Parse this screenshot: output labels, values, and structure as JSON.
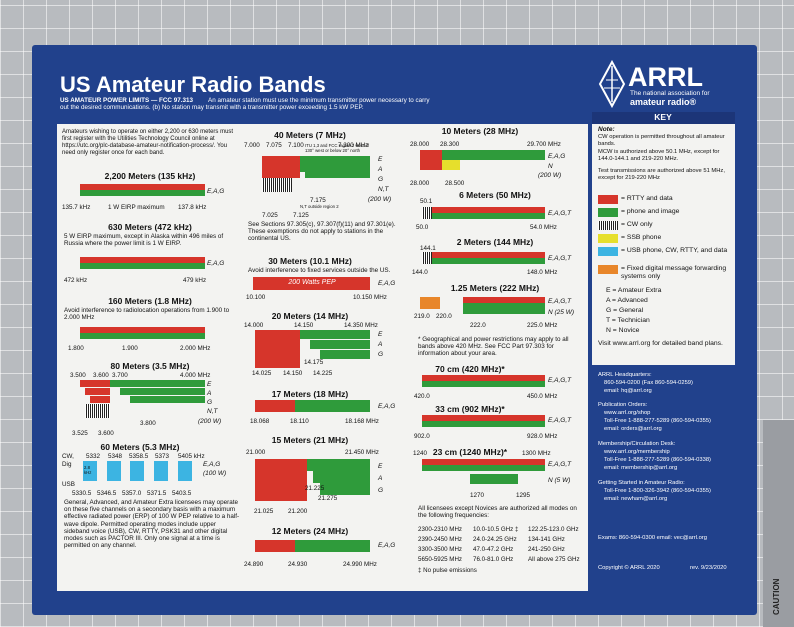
{
  "header": {
    "title": "US Amateur Radio Bands",
    "power_heading": "US AMATEUR POWER LIMITS — FCC 97.313",
    "power_text": "An amateur station must use the minimum transmitter power necessary to carry out the desired communications. (b) No station may transmit with a transmitter power exceeding 1.5 kW PEP."
  },
  "logo": {
    "name": "ARRL",
    "tagline1": "The national association for",
    "tagline2": "amateur radio®"
  },
  "intro": "Amateurs wishing to operate on either 2,200 or 630 meters must first register with the Utilities Technology Council online at https://utc.org/plc-database-amateur-notification-process/. You need only register once for each band.",
  "bands": [
    {
      "title": "2,200 Meters (135 kHz)",
      "labels": [
        "135.7 kHz",
        "1 W EIRP maximum",
        "137.8 kHz"
      ],
      "modes": [
        "E,A,G"
      ]
    },
    {
      "title": "630 Meters (472 kHz)",
      "note": "5 W EIRP maximum, except in Alaska within 496 miles of Russia where the power limit is 1 W EIRP.",
      "labels": [
        "472 kHz",
        "479 kHz"
      ],
      "modes": [
        "E,A,G"
      ]
    },
    {
      "title": "160 Meters (1.8 MHz)",
      "note": "Avoid interference to radiolocation operations from 1.900 to 2.000 MHz",
      "labels": [
        "1.800",
        "1.900",
        "2.000 MHz"
      ],
      "modes": []
    },
    {
      "title": "80 Meters (3.5 MHz)",
      "labels": [
        "3.500",
        "3.600",
        "3.700",
        "4.000 MHz",
        "3.525",
        "3.600",
        "3.800"
      ],
      "modes": [
        "E",
        "A",
        "G",
        "N,T",
        "(200 W)"
      ]
    },
    {
      "title": "60 Meters (5.3 MHz)",
      "note": "General, Advanced, and Amateur Extra licensees may operate on these five channels on a secondary basis with a maximum effective radiated power (ERP) of 100 W PEP relative to a half-wave dipole. Permitted operating modes include upper sideband voice (USB), CW, RTTY, PSK31 and other digital modes such as PACTOR III. Only one signal at a time is permitted on any channel.",
      "labels": [
        "CW,",
        "Dig",
        "USB",
        "5332",
        "5348",
        "5358.5",
        "5373",
        "5405 kHz",
        "5330.5",
        "5346.5",
        "5357.0",
        "5371.5",
        "5403.5",
        "2.8 kHz"
      ],
      "modes": [
        "E,A,G",
        "(100 W)"
      ]
    },
    {
      "title": "40 Meters (7 MHz)",
      "note": "See Sections 97.305(c), 97.307(f)(11) and 97.301(e). These exemptions do not apply to stations in the continental US.",
      "labels": [
        "7.000",
        "7.075",
        "7.100",
        "7.300 MHz",
        "7.025",
        "7.125",
        "7.175",
        "ITU 1,3 and FCC region 2 west of 130° west or below 20° north",
        "N,T outside region 2"
      ],
      "modes": [
        "E",
        "A",
        "G",
        "N,T",
        "(200 W)"
      ]
    },
    {
      "title": "30 Meters (10.1 MHz)",
      "note": "Avoid interference to fixed services outside the US.",
      "labels": [
        "200 Watts PEP",
        "10.100",
        "10.150 MHz"
      ],
      "modes": [
        "E,A,G"
      ]
    },
    {
      "title": "20 Meters (14 MHz)",
      "labels": [
        "14.000",
        "14.150",
        "14.350 MHz",
        "14.175",
        "14.025",
        "14.150",
        "14.225"
      ],
      "modes": [
        "E",
        "A",
        "G"
      ]
    },
    {
      "title": "17 Meters (18 MHz)",
      "labels": [
        "18.068",
        "18.110",
        "18.168 MHz"
      ],
      "modes": [
        "E,A,G"
      ]
    },
    {
      "title": "15 Meters (21 MHz)",
      "labels": [
        "21.000",
        "21.450 MHz",
        "21.025",
        "21.200",
        "21.225",
        "21.275"
      ],
      "modes": [
        "E",
        "A",
        "G"
      ]
    },
    {
      "title": "12 Meters (24 MHz)",
      "labels": [
        "24.890",
        "24.930",
        "24.990 MHz"
      ],
      "modes": [
        "E,A,G"
      ]
    },
    {
      "title": "10 Meters (28 MHz)",
      "labels": [
        "28.000",
        "28.300",
        "29.700 MHz",
        "28.000",
        "28.500"
      ],
      "modes": [
        "E,A,G",
        "N",
        "(200 W)"
      ]
    },
    {
      "title": "6 Meters (50 MHz)",
      "labels": [
        "50.1",
        "50.0",
        "54.0 MHz"
      ],
      "modes": [
        "E,A,G,T"
      ]
    },
    {
      "title": "2 Meters (144 MHz)",
      "labels": [
        "144.1",
        "144.0",
        "148.0 MHz"
      ],
      "modes": [
        "E,A,G,T"
      ]
    },
    {
      "title": "1.25 Meters (222 MHz)",
      "labels": [
        "219.0",
        "220.0",
        "222.0",
        "225.0 MHz"
      ],
      "modes": [
        "E,A,G,T",
        "N (25 W)"
      ]
    },
    {
      "title": "70 cm (420 MHz)*",
      "labels": [
        "420.0",
        "450.0 MHz"
      ],
      "modes": [
        "E,A,G,T"
      ]
    },
    {
      "title": "33 cm (902 MHz)*",
      "labels": [
        "902.0",
        "928.0 MHz"
      ],
      "modes": [
        "E,A,G,T"
      ]
    },
    {
      "title": "23 cm (1240 MHz)*",
      "labels": [
        "1240",
        "1300 MHz",
        "1270",
        "1295"
      ],
      "modes": [
        "E,A,G,T",
        "N (5 W)"
      ]
    }
  ],
  "geo_note": "* Geographical and power restrictions may apply to all bands above 420 MHz. See FCC Part 97.303 for information about your area.",
  "all_modes": {
    "intro": "All licensees except Novices are authorized all modes on the following frequencies:",
    "rows": [
      [
        "2300-2310 MHz",
        "10.0-10.5 GHz ‡",
        "122.25-123.0 GHz"
      ],
      [
        "2390-2450 MHz",
        "24.0-24.25 GHz",
        "134-141 GHz"
      ],
      [
        "3300-3500 MHz",
        "47.0-47.2 GHz",
        "241-250 GHz"
      ],
      [
        "5650-5925 MHz",
        "76.0-81.0 GHz",
        "All above 275 GHz"
      ]
    ],
    "footnote": "‡ No pulse emissions"
  },
  "key": {
    "heading": "KEY",
    "note_label": "Note:",
    "notes": [
      "CW operation is permitted throughout all amateur bands.",
      "MCW is authorized above 50.1 MHz, except for 144.0-144.1 and 219-220 MHz.",
      "Test transmissions are authorized above 51 MHz, except for 219-220 MHz"
    ],
    "legend": [
      "= RTTY and data",
      "= phone and image",
      "= CW only",
      "= SSB phone",
      "= USB phone, CW, RTTY, and data",
      "= Fixed digital message forwarding systems only"
    ],
    "licenses": [
      "E = Amateur Extra",
      "A = Advanced",
      "G = General",
      "T = Technician",
      "N = Novice"
    ],
    "visit": "Visit www.arrl.org for detailed band plans."
  },
  "contacts": [
    {
      "heading": "ARRL Headquarters:",
      "lines": [
        "860-594-0200 (Fax 860-594-0259)",
        "email: hq@arrl.org"
      ]
    },
    {
      "heading": "Publication Orders:",
      "lines": [
        "www.arrl.org/shop",
        "Toll-Free 1-888-277-5289 (860-594-0355)",
        "email: orders@arrl.org"
      ]
    },
    {
      "heading": "Membership/Circulation Desk:",
      "lines": [
        "www.arrl.org/membership",
        "Toll-Free 1-888-277-5289 (860-594-0338)",
        "email: membership@arrl.org"
      ]
    },
    {
      "heading": "Getting Started in Amateur Radio:",
      "lines": [
        "Toll-Free 1-800-326-3942 (860-594-0355)",
        "email: newham@arrl.org"
      ]
    }
  ],
  "exams": "Exams: 860-594-0300   email: vec@arrl.org",
  "copyright": "Copyright © ARRL 2020",
  "revision": "rev. 9/23/2020",
  "sticker": "CAUTION"
}
